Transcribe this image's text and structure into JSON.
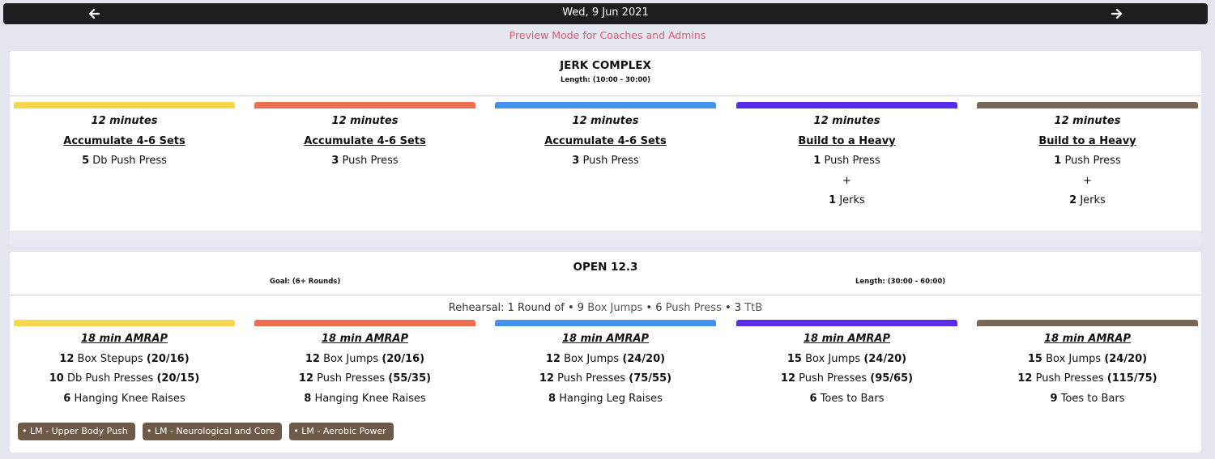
{
  "nav": {
    "date": "Wed, 9 Jun 2021"
  },
  "preview": "Preview Mode for Coaches and Admins",
  "colors": {
    "yellow": "#f7d84a",
    "orange": "#ee6e51",
    "blue": "#4491ef",
    "purple": "#5b29ef",
    "brown": "#7a6655"
  },
  "jerk": {
    "title": "JERK COMPLEX",
    "length": "Length: (10:00 - 30:00)",
    "columns": [
      {
        "minutes": "12 minutes",
        "heading": "Accumulate 4-6 Sets",
        "l1n": "5",
        "l1t": "Db Push Press"
      },
      {
        "minutes": "12 minutes",
        "heading": "Accumulate 4-6 Sets",
        "l1n": "3",
        "l1t": "Push Press"
      },
      {
        "minutes": "12 minutes",
        "heading": "Accumulate 4-6 Sets",
        "l1n": "3",
        "l1t": "Push Press"
      },
      {
        "minutes": "12 minutes",
        "heading": "Build to a Heavy",
        "l1n": "1",
        "l1t": "Push Press",
        "plus": "+",
        "l2n": "1",
        "l2t": "Jerks"
      },
      {
        "minutes": "12 minutes",
        "heading": "Build to a Heavy",
        "l1n": "1",
        "l1t": "Push Press",
        "plus": "+",
        "l2n": "2",
        "l2t": "Jerks"
      }
    ]
  },
  "open": {
    "title": "OPEN 12.3",
    "goal": "Goal: (6+ Rounds)",
    "length": "Length: (30:00 - 60:00)",
    "rehearsal": {
      "prefix": "Rehearsal: 1 Round of",
      "n1": "9",
      "t1": "Box Jumps",
      "n2": "6",
      "t2": "Push Press",
      "n3": "3",
      "t3": "TtB"
    },
    "columns": [
      {
        "heading": "18 min AMRAP",
        "r1n": "12",
        "r1t": "Box Stepups",
        "r1w": "(20/16)",
        "r2n": "10",
        "r2t": "Db Push Presses",
        "r2w": "(20/15)",
        "r3n": "6",
        "r3t": "Hanging Knee Raises"
      },
      {
        "heading": "18 min AMRAP",
        "r1n": "12",
        "r1t": "Box Jumps",
        "r1w": "(20/16)",
        "r2n": "12",
        "r2t": "Push Presses",
        "r2w": "(55/35)",
        "r3n": "8",
        "r3t": "Hanging Knee Raises"
      },
      {
        "heading": "18 min AMRAP",
        "r1n": "12",
        "r1t": "Box Jumps",
        "r1w": "(24/20)",
        "r2n": "12",
        "r2t": "Push Presses",
        "r2w": "(75/55)",
        "r3n": "8",
        "r3t": "Hanging Leg Raises"
      },
      {
        "heading": "18 min AMRAP",
        "r1n": "15",
        "r1t": "Box Jumps",
        "r1w": "(24/20)",
        "r2n": "12",
        "r2t": "Push Presses",
        "r2w": "(95/65)",
        "r3n": "6",
        "r3t": "Toes to Bars"
      },
      {
        "heading": "18 min AMRAP",
        "r1n": "15",
        "r1t": "Box Jumps",
        "r1w": "(24/20)",
        "r2n": "12",
        "r2t": "Push Presses",
        "r2w": "(115/75)",
        "r3n": "9",
        "r3t": "Toes to Bars"
      }
    ],
    "tags": [
      "• LM - Upper Body Push",
      "• LM - Neurological and Core",
      "• LM - Aerobic Power"
    ]
  }
}
